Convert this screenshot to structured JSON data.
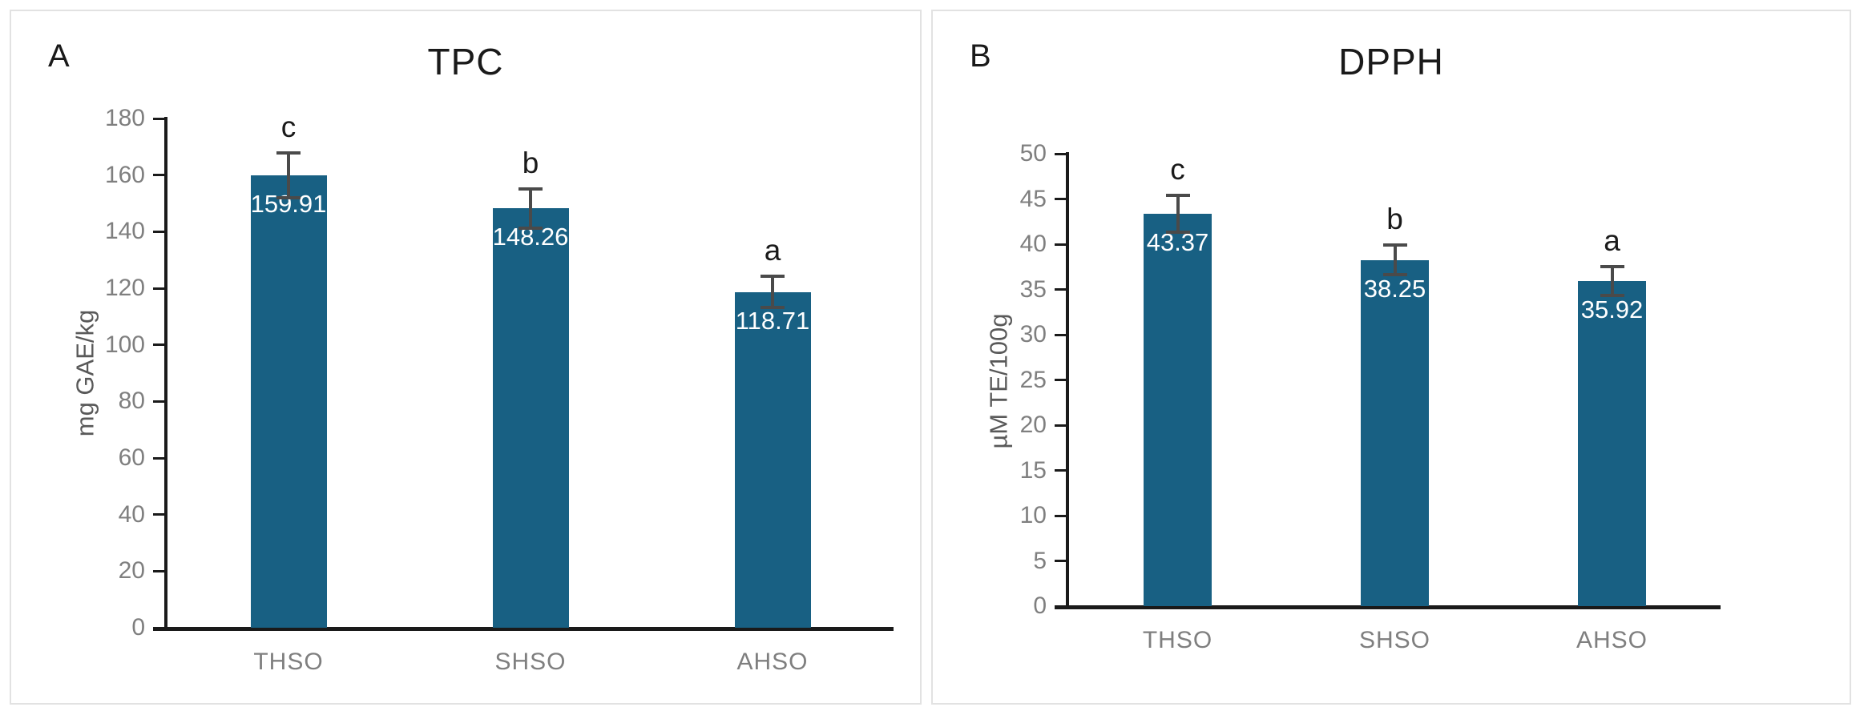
{
  "style": {
    "bar_color": "#186083",
    "error_bar_color": "#4a4a4a",
    "axis_color": "#1a1a1a",
    "tick_label_color": "#7f7f7f",
    "axis_title_color": "#595959",
    "title_color": "#1a1a1a",
    "value_label_color": "#ffffff",
    "panel_border_color": "#e2e2e2",
    "background": "#ffffff"
  },
  "chart_data": [
    {
      "type": "bar",
      "panel_label": "A",
      "title": "TPC",
      "xlabel": "",
      "ylabel": "mg GAE/kg",
      "categories": [
        "THSO",
        "SHSO",
        "AHSO"
      ],
      "values": [
        159.91,
        148.26,
        118.71
      ],
      "value_labels": [
        "159.91",
        "148.26",
        "118.71"
      ],
      "errors": [
        8.5,
        7.5,
        6.0
      ],
      "sig_letters": [
        "c",
        "b",
        "a"
      ],
      "ylim": [
        0,
        180
      ],
      "ytick_step": 20,
      "grid": false,
      "legend": false
    },
    {
      "type": "bar",
      "panel_label": "B",
      "title": "DPPH",
      "xlabel": "",
      "ylabel": "µM TE/100g",
      "categories": [
        "THSO",
        "SHSO",
        "AHSO"
      ],
      "values": [
        43.37,
        38.25,
        35.92
      ],
      "value_labels": [
        "43.37",
        "38.25",
        "35.92"
      ],
      "errors": [
        2.2,
        1.8,
        1.8
      ],
      "sig_letters": [
        "c",
        "b",
        "a"
      ],
      "ylim": [
        0,
        50
      ],
      "ytick_step": 5,
      "grid": false,
      "legend": false
    }
  ]
}
